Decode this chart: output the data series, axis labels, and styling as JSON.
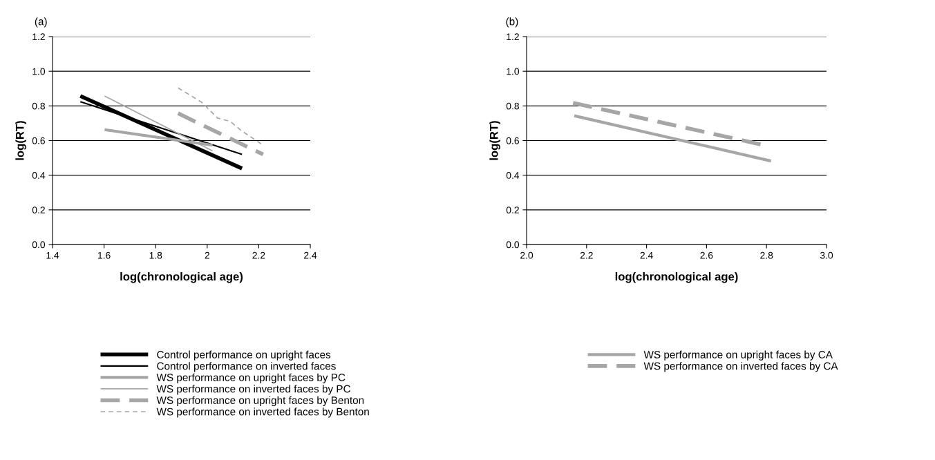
{
  "chart_data": [
    {
      "type": "line",
      "title": "(a)",
      "xlabel": "log(chronological age)",
      "ylabel": "log(RT)",
      "xlim": [
        1.4,
        2.4
      ],
      "xticks": [
        1.4,
        1.6,
        1.8,
        2,
        2.2,
        2.4
      ],
      "ylim": [
        0,
        1.2
      ],
      "yticks": [
        {
          "value": 0,
          "label": "0.0"
        },
        {
          "value": 0.2,
          "label": "0.2"
        },
        {
          "value": 0.4,
          "label": "0.4"
        },
        {
          "value": 0.6,
          "label": "0.6"
        },
        {
          "value": 0.8,
          "label": "0.8"
        },
        {
          "value": 1.0,
          "label": "1.0"
        },
        {
          "value": 1.2,
          "label": "1.2"
        }
      ],
      "grid": "y",
      "legend": "bottom",
      "marker": "none",
      "series": [
        {
          "name": "Control performance on upright faces",
          "color": "#000000",
          "line_style": "solid",
          "x": [
            1.508,
            2.135
          ],
          "values": [
            0.857,
            0.439
          ]
        },
        {
          "name": "Control performance on inverted faces",
          "color": "#000000",
          "line_style": "solid",
          "x": [
            1.508,
            2.135
          ],
          "values": [
            0.824,
            0.52
          ]
        },
        {
          "name": "WS performance on upright faces by PC",
          "color": "#a6a6a6",
          "line_style": "solid",
          "x": [
            1.602,
            2.021
          ],
          "values": [
            0.663,
            0.573
          ]
        },
        {
          "name": "WS performance on inverted faces by PC",
          "color": "#a6a6a6",
          "line_style": "solid",
          "x": [
            1.602,
            2.021
          ],
          "values": [
            0.857,
            0.54
          ]
        },
        {
          "name": "WS performance on upright faces by Benton",
          "color": "#a6a6a6",
          "line_style": "dashed",
          "x": [
            1.887,
            2.217
          ],
          "values": [
            0.757,
            0.52
          ]
        },
        {
          "name": "WS performance on inverted faces by Benton",
          "color": "#a6a6a6",
          "line_style": "dashed",
          "x": [
            1.887,
            1.98,
            2.04,
            2.09,
            2.13,
            2.217
          ],
          "values": [
            0.904,
            0.82,
            0.73,
            0.71,
            0.66,
            0.573
          ]
        }
      ]
    },
    {
      "type": "line",
      "title": "(b)",
      "xlabel": "log(chronological age)",
      "ylabel": "log(RT)",
      "xlim": [
        2.0,
        3.0
      ],
      "xticks": [
        {
          "value": 2.0,
          "label": "2.0"
        },
        {
          "value": 2.2,
          "label": "2.2"
        },
        {
          "value": 2.4,
          "label": "2.4"
        },
        {
          "value": 2.6,
          "label": "2.6"
        },
        {
          "value": 2.8,
          "label": "2.8"
        },
        {
          "value": 3.0,
          "label": "3.0"
        }
      ],
      "ylim": [
        0,
        1.2
      ],
      "yticks": [
        {
          "value": 0,
          "label": "0.0"
        },
        {
          "value": 0.2,
          "label": "0.2"
        },
        {
          "value": 0.4,
          "label": "0.4"
        },
        {
          "value": 0.6,
          "label": "0.6"
        },
        {
          "value": 0.8,
          "label": "0.8"
        },
        {
          "value": 1.0,
          "label": "1.0"
        },
        {
          "value": 1.2,
          "label": "1.2"
        }
      ],
      "grid": "y",
      "legend": "bottom",
      "marker": "none",
      "series": [
        {
          "name": "WS performance on upright faces by CA",
          "color": "#a6a6a6",
          "line_style": "solid",
          "x": [
            2.159,
            2.815
          ],
          "values": [
            0.743,
            0.482
          ]
        },
        {
          "name": "WS performance on inverted faces by CA",
          "color": "#a6a6a6",
          "line_style": "dashed",
          "x": [
            2.155,
            2.788
          ],
          "values": [
            0.817,
            0.575
          ]
        }
      ]
    }
  ]
}
